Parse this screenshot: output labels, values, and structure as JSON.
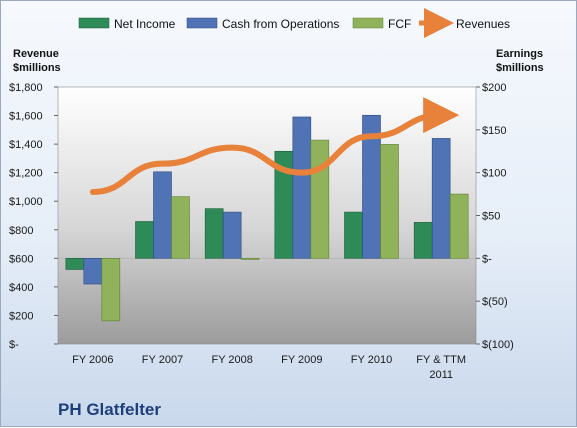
{
  "chart_data": {
    "type": "bar",
    "title": "PH Glatfelter",
    "categories": [
      [
        "FY 2006"
      ],
      [
        "FY 2007"
      ],
      [
        "FY 2008"
      ],
      [
        "FY 2009"
      ],
      [
        "FY 2010"
      ],
      [
        "FY & TTM",
        "2011"
      ]
    ],
    "left_axis": {
      "label_lines": [
        "Revenue",
        "$millions"
      ],
      "ylim": [
        0,
        1800
      ],
      "ticks": [
        0,
        200,
        400,
        600,
        800,
        1000,
        1200,
        1400,
        1600,
        1800
      ],
      "tick_labels": [
        "$-",
        "$200",
        "$400",
        "$600",
        "$800",
        "$1,000",
        "$1,200",
        "$1,400",
        "$1,600",
        "$1,800"
      ]
    },
    "right_axis": {
      "label_lines": [
        "Earnings",
        "$millions"
      ],
      "ylim": [
        -100,
        200
      ],
      "ticks": [
        -100,
        -50,
        0,
        50,
        100,
        150,
        200
      ],
      "tick_labels": [
        "$(100)",
        "$(50)",
        "$-",
        "$50",
        "$100",
        "$150",
        "$200"
      ]
    },
    "series": [
      {
        "name": "Net Income",
        "axis": "right",
        "type": "bar",
        "color": "#2e8b57",
        "values": [
          -13,
          43,
          58,
          125,
          54,
          42
        ]
      },
      {
        "name": "Cash from Operations",
        "axis": "right",
        "type": "bar",
        "color": "#4f73b5",
        "values": [
          -30,
          101,
          54,
          165,
          167,
          140
        ]
      },
      {
        "name": "FCF",
        "axis": "right",
        "type": "bar",
        "color": "#8fb25a",
        "values": [
          -73,
          72,
          0,
          138,
          133,
          75
        ]
      },
      {
        "name": "Revenues",
        "axis": "left",
        "type": "line",
        "color": "#e8813a",
        "values": [
          1065,
          1263,
          1375,
          1200,
          1455,
          1603
        ]
      }
    ],
    "grid": false,
    "legend_position": "top"
  }
}
